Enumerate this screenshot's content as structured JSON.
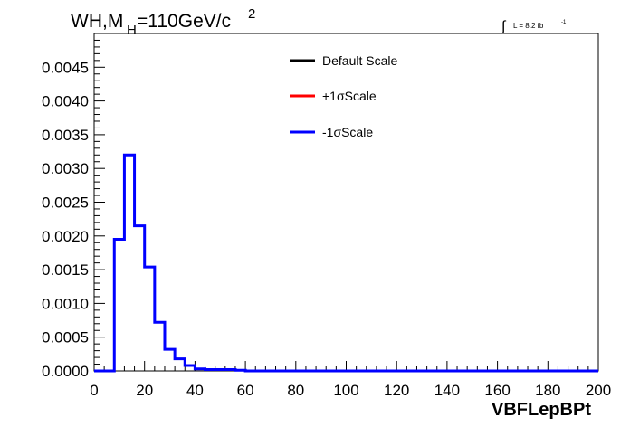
{
  "chart_data": {
    "type": "line",
    "title_main": "WH,M",
    "title_sub": "H",
    "title_rest": "=110GeV/c",
    "title_sup": "2",
    "lumi_symbol": "∫",
    "lumi_text": "L = 8.2 fb",
    "lumi_sup": "-1",
    "xlabel": "VBFLepBPt",
    "xlim": [
      0,
      200
    ],
    "ylim": [
      0,
      0.005
    ],
    "x_ticks": [
      "0",
      "20",
      "40",
      "60",
      "80",
      "100",
      "120",
      "140",
      "160",
      "180",
      "200"
    ],
    "y_ticks": [
      "0.0000",
      "0.0005",
      "0.0010",
      "0.0015",
      "0.0020",
      "0.0025",
      "0.0030",
      "0.0035",
      "0.0040",
      "0.0045"
    ],
    "bin_width": 4,
    "legend": [
      {
        "label": "Default Scale",
        "color": "#000000"
      },
      {
        "label": "+1σScale",
        "color": "#ff0000"
      },
      {
        "label": "-1σScale",
        "color": "#0000ff"
      }
    ],
    "series": [
      {
        "name": "-1σScale",
        "color": "#0000ff",
        "values": [
          0,
          0,
          0.00195,
          0.0032,
          0.00215,
          0.00154,
          0.00072,
          0.00032,
          0.00018,
          8e-05,
          3e-05,
          2e-05,
          2e-05,
          2e-05,
          1e-05,
          0.0,
          0.0,
          0.0,
          0.0,
          0.0,
          0.0,
          0.0,
          0.0,
          0.0,
          0.0,
          0.0,
          0.0,
          0.0,
          0.0,
          0.0,
          0.0,
          0.0,
          0.0,
          0.0,
          0.0,
          0.0,
          0.0,
          0.0,
          0.0,
          0.0,
          0.0,
          0.0,
          0.0,
          0.0,
          0.0,
          0.0,
          0.0,
          0.0,
          0.0,
          0.0
        ]
      }
    ]
  }
}
